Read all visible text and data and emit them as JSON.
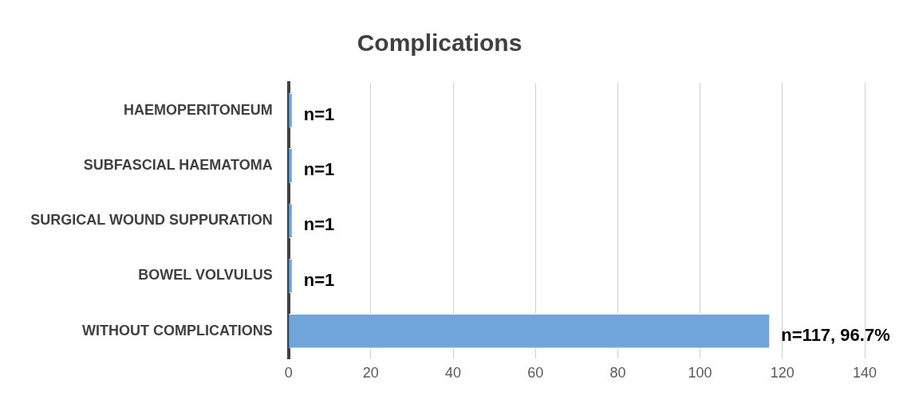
{
  "chart_data": {
    "type": "bar",
    "orientation": "horizontal",
    "title": "Complications",
    "categories": [
      "HAEMOPERITONEUM",
      "SUBFASCIAL HAEMATOMA",
      "SURGICAL WOUND SUPPURATION",
      "BOWEL VOLVULUS",
      "WITHOUT COMPLICATIONS"
    ],
    "values": [
      1,
      1,
      1,
      1,
      117
    ],
    "value_labels": [
      "n=1",
      "n=1",
      "n=1",
      "n=1",
      "n=117, 96.7%"
    ],
    "color": "#6fa5da",
    "xlim": [
      0,
      140
    ],
    "xticks": [
      0,
      20,
      40,
      60,
      80,
      100,
      120,
      140
    ],
    "grid": "x",
    "legend": false
  }
}
